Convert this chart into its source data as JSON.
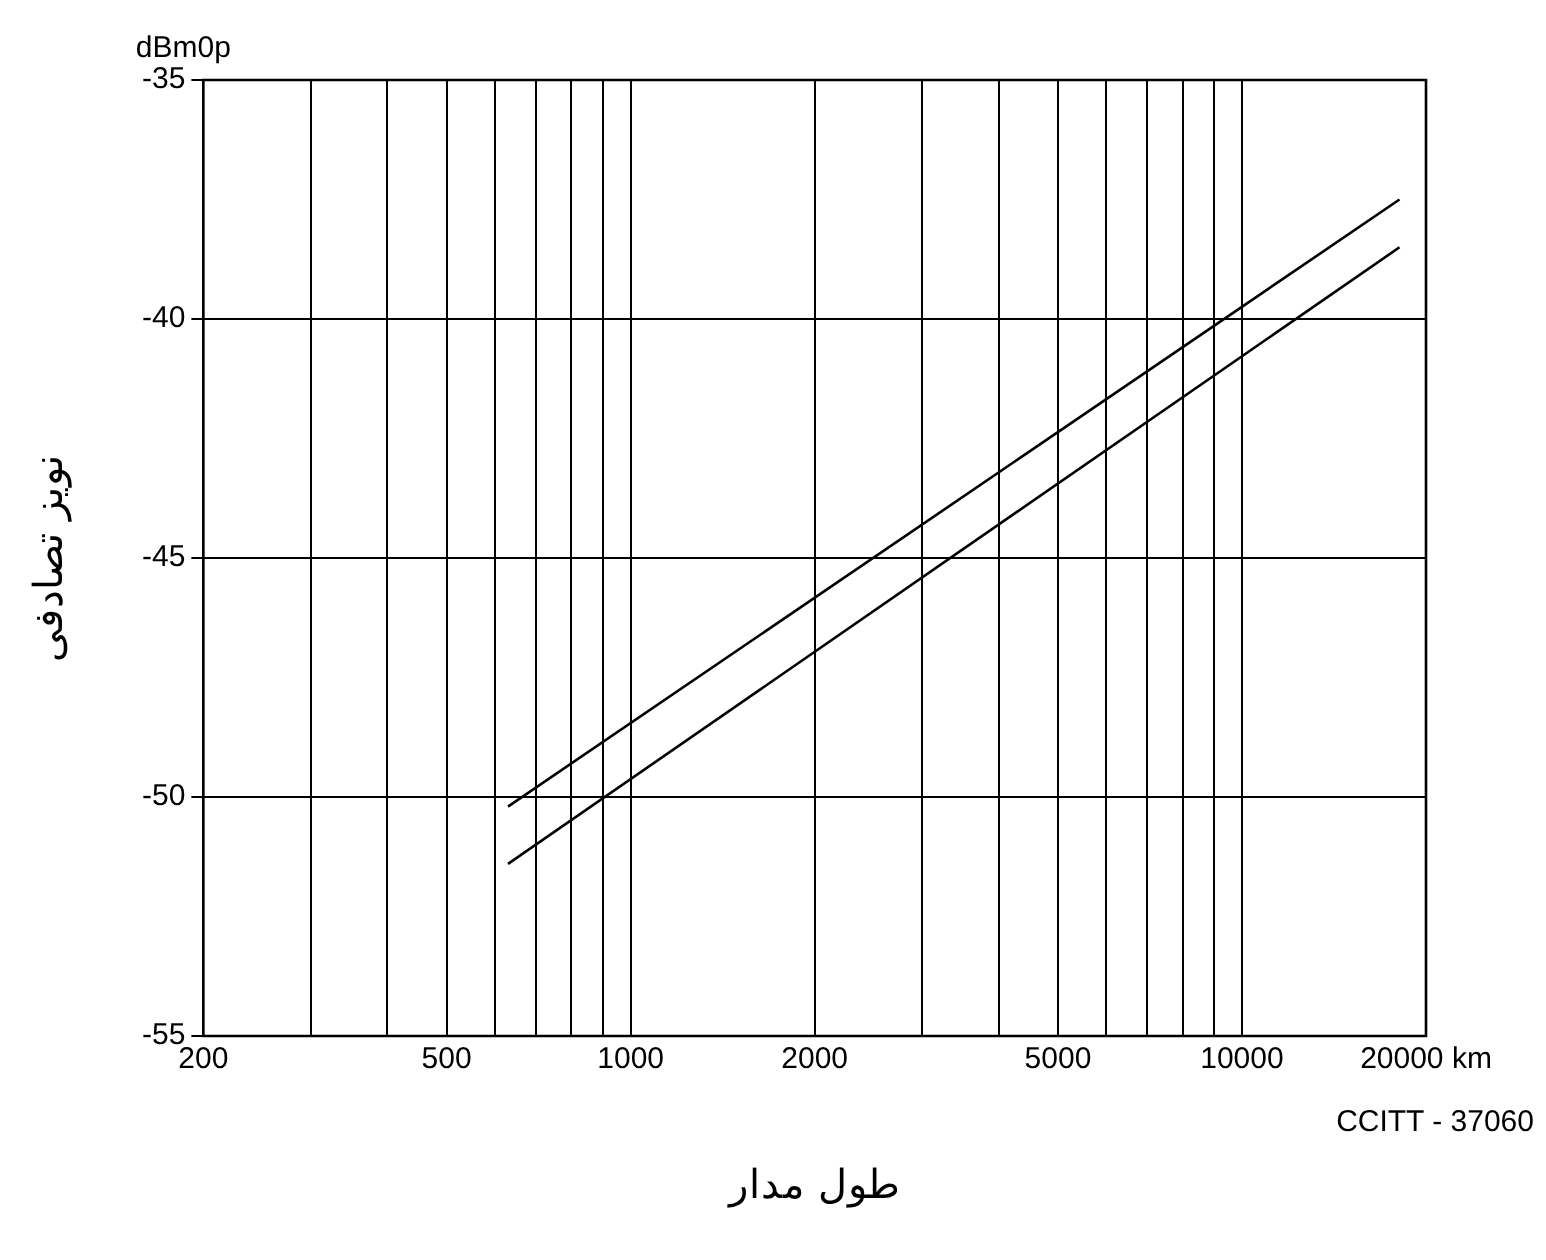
{
  "chart_data": {
    "type": "line",
    "xlabel": "طول مدار",
    "ylabel": "نویز تصادفی",
    "annotations": [
      "dBm0p",
      "CCITT - 37060"
    ],
    "log": "x",
    "x": [
      630,
      18100
    ],
    "series": [
      {
        "color": "#000000",
        "values": [
          -51.4,
          -38.5
        ]
      },
      {
        "color": "#000000",
        "values": [
          -50.2,
          -37.5
        ]
      }
    ],
    "xlim": [
      200,
      20000
    ],
    "xticks": [
      200,
      {
        "value": 300,
        "label": null
      },
      {
        "value": 400,
        "label": null
      },
      500,
      {
        "value": 600,
        "label": null
      },
      {
        "value": 700,
        "label": null
      },
      {
        "value": 800,
        "label": null
      },
      {
        "value": 900,
        "label": null
      },
      1000,
      2000,
      {
        "value": 3000,
        "label": null
      },
      {
        "value": 4000,
        "label": null
      },
      5000,
      {
        "value": 6000,
        "label": null
      },
      {
        "value": 7000,
        "label": null
      },
      {
        "value": 8000,
        "label": null
      },
      {
        "value": 9000,
        "label": null
      },
      10000,
      {
        "value": 20000,
        "label": "20000 km"
      }
    ],
    "ylim": [
      -55,
      -35
    ],
    "yticks": [
      -55,
      -50,
      -45,
      -40,
      -35
    ],
    "grid": true,
    "line_style": "solid",
    "legend": false
  }
}
